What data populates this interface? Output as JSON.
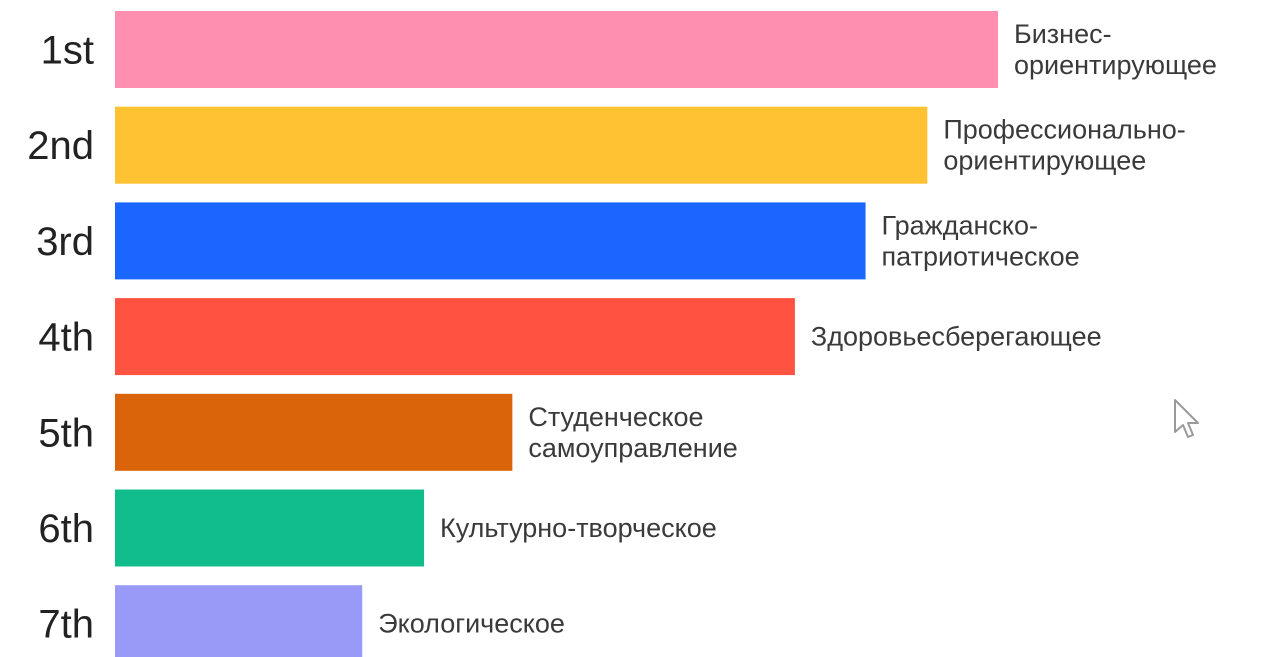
{
  "chart_data": {
    "type": "bar",
    "orientation": "horizontal",
    "ranks": [
      "1st",
      "2nd",
      "3rd",
      "4th",
      "5th",
      "6th",
      "7th"
    ],
    "categories": [
      "Бизнес-ориентирующее",
      "Профессионально-ориентирующее",
      "Гражданско-патриотическое",
      "Здоровьесберегающее",
      "Студенческое самоуправление",
      "Культурно-творческое",
      "Экологическое"
    ],
    "label_lines": [
      [
        "Бизнес-",
        "ориентирующее"
      ],
      [
        "Профессионально-",
        "ориентирующее"
      ],
      [
        "Гражданско-",
        "патриотическое"
      ],
      [
        "Здоровьесберегающее"
      ],
      [
        "Студенческое",
        "самоуправление"
      ],
      [
        "Культурно-творческое"
      ],
      [
        "Экологическое"
      ]
    ],
    "values": [
      100,
      92,
      85,
      77,
      45,
      35,
      28
    ],
    "colors": [
      "#ff8fb1",
      "#ffc233",
      "#1a66ff",
      "#ff5240",
      "#d9640a",
      "#12bd8c",
      "#9999f7"
    ],
    "xlim": [
      0,
      100
    ],
    "grid": false,
    "legend": "none",
    "title": "",
    "xlabel": "",
    "ylabel": ""
  },
  "cursor_icon": "mouse-pointer-icon"
}
